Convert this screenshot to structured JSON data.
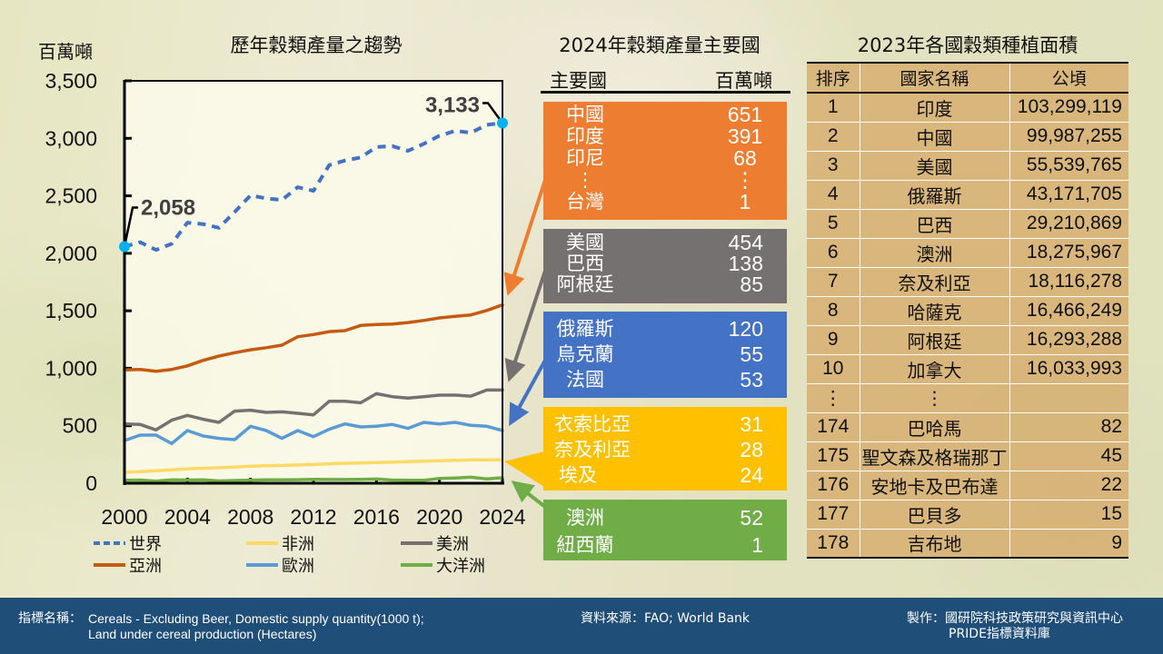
{
  "chart_data": {
    "type": "line",
    "title": "歷年穀類產量之趨勢",
    "ylabel": "百萬噸",
    "xlabel": "",
    "xlim": [
      2000,
      2024
    ],
    "ylim": [
      0,
      3500
    ],
    "grid": false,
    "legend": "bottom",
    "x": [
      2000,
      2001,
      2002,
      2003,
      2004,
      2005,
      2006,
      2007,
      2008,
      2009,
      2010,
      2011,
      2012,
      2013,
      2014,
      2015,
      2016,
      2017,
      2018,
      2019,
      2020,
      2021,
      2022,
      2023,
      2024
    ],
    "x_ticks": [
      {
        "value": 2000,
        "label": "2000"
      },
      {
        "value": 2004,
        "label": "2004"
      },
      {
        "value": 2008,
        "label": "2008"
      },
      {
        "value": 2012,
        "label": "2012"
      },
      {
        "value": 2016,
        "label": "2016"
      },
      {
        "value": 2020,
        "label": "2020"
      },
      {
        "value": 2024,
        "label": "2024"
      }
    ],
    "y_ticks": [
      {
        "value": 0,
        "label": "0"
      },
      {
        "value": 500,
        "label": "500"
      },
      {
        "value": 1000,
        "label": "1,000"
      },
      {
        "value": 1500,
        "label": "1,500"
      },
      {
        "value": 2000,
        "label": "2,000"
      },
      {
        "value": 2500,
        "label": "2,500"
      },
      {
        "value": 3000,
        "label": "3,000"
      },
      {
        "value": 3500,
        "label": "3,500"
      }
    ],
    "series": [
      {
        "name": "世界",
        "color": "#4472c4",
        "style": "dashed",
        "values": [
          2058,
          2096,
          2030,
          2083,
          2267,
          2254,
          2222,
          2359,
          2504,
          2478,
          2464,
          2575,
          2543,
          2767,
          2807,
          2833,
          2925,
          2933,
          2891,
          2952,
          3023,
          3065,
          3049,
          3118,
          3133
        ]
      },
      {
        "name": "亞洲",
        "color": "#c55a11",
        "style": "solid",
        "values": [
          985,
          990,
          974,
          990,
          1021,
          1069,
          1106,
          1135,
          1161,
          1179,
          1201,
          1274,
          1293,
          1319,
          1327,
          1372,
          1380,
          1385,
          1398,
          1416,
          1438,
          1451,
          1464,
          1503,
          1551
        ]
      },
      {
        "name": "非洲",
        "color": "#ffd966",
        "style": "solid",
        "values": [
          95,
          101,
          108,
          117,
          126,
          130,
          134,
          141,
          148,
          152,
          155,
          159,
          163,
          169,
          174,
          177,
          179,
          183,
          187,
          191,
          195,
          199,
          203,
          204,
          205
        ]
      },
      {
        "name": "歐洲",
        "color": "#5b9bd5",
        "style": "solid",
        "values": [
          371,
          419,
          419,
          345,
          458,
          411,
          390,
          379,
          495,
          458,
          390,
          458,
          405,
          469,
          516,
          490,
          495,
          511,
          477,
          529,
          516,
          529,
          503,
          495,
          458
        ]
      },
      {
        "name": "美洲",
        "color": "#767171",
        "style": "solid",
        "values": [
          516,
          511,
          464,
          548,
          590,
          556,
          529,
          627,
          635,
          616,
          621,
          608,
          595,
          713,
          713,
          700,
          779,
          753,
          740,
          753,
          766,
          766,
          758,
          811,
          811
        ]
      },
      {
        "name": "大洋洲",
        "color": "#70ad47",
        "style": "solid",
        "values": [
          25,
          28,
          18,
          30,
          28,
          30,
          20,
          24,
          27,
          30,
          30,
          31,
          33,
          32,
          32,
          33,
          36,
          28,
          26,
          25,
          42,
          46,
          52,
          38,
          48
        ]
      }
    ],
    "annotations": [
      {
        "series": 0,
        "x": 2000,
        "label": "2,058",
        "marker_color": "#00b0f0"
      },
      {
        "series": 0,
        "x": 2024,
        "label": "3,133",
        "marker_color": "#00b0f0"
      }
    ]
  },
  "producers": {
    "title": "2024年穀類產量主要國",
    "col_country": "主要國",
    "col_unit": "百萬噸",
    "groups": [
      {
        "color": "#ed7d31",
        "rows": [
          {
            "name": "中國",
            "value": "651"
          },
          {
            "name": "印度",
            "value": "391"
          },
          {
            "name": "印尼",
            "value": "68"
          },
          {
            "name": "⋮",
            "value": "⋮"
          },
          {
            "name": "台灣",
            "value": "1"
          }
        ]
      },
      {
        "color": "#767171",
        "rows": [
          {
            "name": "美國",
            "value": "454"
          },
          {
            "name": "巴西",
            "value": "138"
          },
          {
            "name": "阿根廷",
            "value": "85"
          }
        ]
      },
      {
        "color": "#4472c4",
        "rows": [
          {
            "name": "俄羅斯",
            "value": "120"
          },
          {
            "name": "烏克蘭",
            "value": "55"
          },
          {
            "name": "法國",
            "value": "53"
          }
        ]
      },
      {
        "color": "#ffc000",
        "rows": [
          {
            "name": "衣索比亞",
            "value": "31"
          },
          {
            "name": "奈及利亞",
            "value": "28"
          },
          {
            "name": "埃及",
            "value": "24"
          }
        ]
      },
      {
        "color": "#70ad47",
        "rows": [
          {
            "name": "澳洲",
            "value": "52"
          },
          {
            "name": "紐西蘭",
            "value": "1"
          }
        ]
      }
    ]
  },
  "area_table": {
    "title": "2023年各國穀類種植面積",
    "headers": [
      "排序",
      "國家名稱",
      "公頃"
    ],
    "rows": [
      {
        "rank": "1",
        "country": "印度",
        "hectares": "103,299,119"
      },
      {
        "rank": "2",
        "country": "中國",
        "hectares": "99,987,255"
      },
      {
        "rank": "3",
        "country": "美國",
        "hectares": "55,539,765"
      },
      {
        "rank": "4",
        "country": "俄羅斯",
        "hectares": "43,171,705"
      },
      {
        "rank": "5",
        "country": "巴西",
        "hectares": "29,210,869"
      },
      {
        "rank": "6",
        "country": "澳洲",
        "hectares": "18,275,967"
      },
      {
        "rank": "7",
        "country": "奈及利亞",
        "hectares": "18,116,278"
      },
      {
        "rank": "8",
        "country": "哈薩克",
        "hectares": "16,466,249"
      },
      {
        "rank": "9",
        "country": "阿根廷",
        "hectares": "16,293,288"
      },
      {
        "rank": "10",
        "country": "加拿大",
        "hectares": "16,033,993"
      },
      {
        "rank": "⋮",
        "country": "⋮",
        "hectares": ""
      },
      {
        "rank": "174",
        "country": "巴哈馬",
        "hectares": "82"
      },
      {
        "rank": "175",
        "country": "聖文森及格瑞那丁",
        "hectares": "45"
      },
      {
        "rank": "176",
        "country": "安地卡及巴布達",
        "hectares": "22"
      },
      {
        "rank": "177",
        "country": "巴貝多",
        "hectares": "15"
      },
      {
        "rank": "178",
        "country": "吉布地",
        "hectares": "9"
      }
    ]
  },
  "footer": {
    "indicator_label": "指標名稱：",
    "indicator_line1": "Cereals - Excluding Beer, Domestic supply quantity(1000 t);",
    "indicator_line2": "Land under cereal production (Hectares)",
    "source": "資料來源：FAO; World Bank",
    "producer_line1": "製作：國研院科技政策研究與資訊中心",
    "producer_line2": "PRIDE指標資料庫",
    "background": "#1f4e79"
  }
}
